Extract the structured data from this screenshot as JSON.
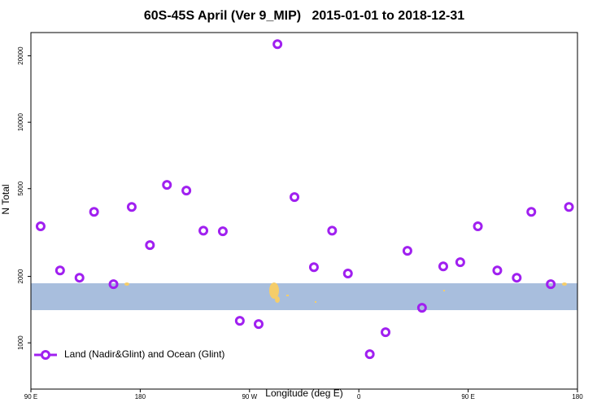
{
  "chart_data": {
    "type": "scatter",
    "title": "60S-45S April (Ver 9_MIP)   2015-01-01 to 2018-12-31",
    "x_label": "Longitude (deg E)",
    "y_label": "N Total",
    "xlim": [
      90,
      540
    ],
    "xticks": [
      {
        "value": 90,
        "label": "90 E"
      },
      {
        "value": 180,
        "label": "180"
      },
      {
        "value": 270,
        "label": "90 W"
      },
      {
        "value": 360,
        "label": "0"
      },
      {
        "value": 450,
        "label": "90 E"
      },
      {
        "value": 540,
        "label": "180"
      }
    ],
    "ylim": [
      617,
      25500
    ],
    "yticks": [
      1000,
      2000,
      5000,
      10000,
      20000
    ],
    "log_y": true,
    "legend": "bottom-left",
    "series": [
      {
        "name": "Land (Nadir&Glint) and Ocean (Glint)",
        "color": "#a020f0",
        "x": [
          98,
          114,
          130,
          142,
          158,
          173,
          188,
          202,
          218,
          232,
          248,
          262,
          277.5,
          293,
          307,
          323,
          338,
          351,
          369,
          382,
          400,
          412,
          429.5,
          443.5,
          458,
          474,
          490,
          502,
          518,
          533
        ],
        "values": [
          3375,
          2128,
          1973,
          3926,
          1844,
          4130,
          2773,
          5200,
          4900,
          3226,
          3205,
          1258,
          1216,
          22600,
          4580,
          2203,
          3226,
          2061,
          888,
          1117,
          2612,
          1442,
          2222,
          2319,
          3375,
          2128,
          1973,
          3926,
          1844,
          4130
        ]
      }
    ]
  }
}
